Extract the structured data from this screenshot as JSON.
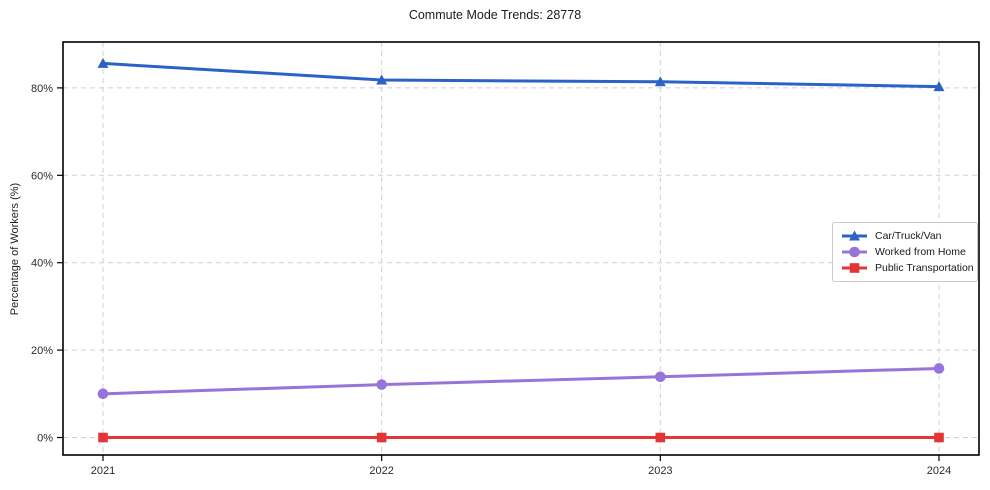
{
  "title": "Commute Mode Trends: 28778",
  "chart_data": {
    "type": "line",
    "title": "Commute Mode Trends: 28778",
    "xlabel": "",
    "ylabel": "Percentage of Workers (%)",
    "categories": [
      "2021",
      "2022",
      "2023",
      "2024"
    ],
    "series": [
      {
        "name": "Car/Truck/Van",
        "values": [
          85.6,
          81.8,
          81.4,
          80.3
        ],
        "color": "#2b63c5",
        "marker": "triangle"
      },
      {
        "name": "Worked from Home",
        "values": [
          10.0,
          12.1,
          13.9,
          15.8
        ],
        "color": "#9774da",
        "marker": "circle"
      },
      {
        "name": "Public Transportation",
        "values": [
          0.0,
          0.0,
          0.0,
          0.0
        ],
        "color": "#e23636",
        "marker": "square"
      }
    ],
    "yticks": [
      0,
      20,
      40,
      60,
      80
    ],
    "ytick_labels": [
      "0%",
      "20%",
      "40%",
      "60%",
      "80%"
    ],
    "ylim": [
      -4,
      90.5
    ],
    "grid": true,
    "grid_style": "dashed",
    "legend_position": "center-right"
  },
  "style": {
    "grid_color": "#cfcfcf",
    "axis_color": "#000000",
    "tick_text_color": "#2b2b2b",
    "background": "#ffffff"
  }
}
